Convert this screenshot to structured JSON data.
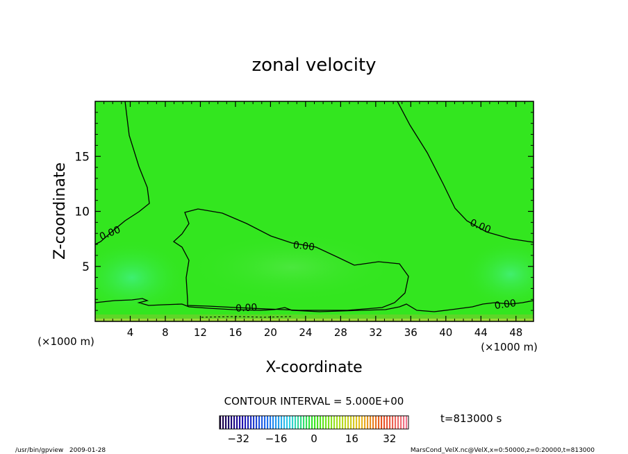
{
  "chart_data": {
    "type": "heatmap",
    "title": "zonal velocity",
    "xlabel": "X-coordinate",
    "ylabel": "Z-coordinate",
    "x_unit_left": "(×1000 m)",
    "x_unit_right": "(×1000 m)",
    "xlim": [
      0,
      50
    ],
    "ylim": [
      0,
      20
    ],
    "x_ticks": [
      "4",
      "8",
      "12",
      "16",
      "20",
      "24",
      "28",
      "32",
      "36",
      "40",
      "44",
      "48"
    ],
    "x_tick_values": [
      4,
      8,
      12,
      16,
      20,
      24,
      28,
      32,
      36,
      40,
      44,
      48
    ],
    "y_ticks": [
      "5",
      "10",
      "15"
    ],
    "y_tick_values": [
      5,
      10,
      15
    ],
    "contour_interval": "CONTOUR INTERVAL = 5.000E+00",
    "contour_labels": [
      "0.00",
      "0.00",
      "0.00",
      "0.00",
      "0.00"
    ],
    "colorbar": {
      "min": -40,
      "max": 40,
      "ticks": [
        "−32",
        "−16",
        "0",
        "16",
        "32"
      ],
      "tick_values": [
        -32,
        -16,
        0,
        16,
        32
      ]
    },
    "time_label": "t=813000 s",
    "footer_left": "/usr/bin/gpview   2009-01-28",
    "footer_right": "MarsCond_VelX.nc@VelX,x=0:50000,z=0:20000,t=813000",
    "field_color": "#33e61f",
    "grid": false,
    "legend": "colorbar bottom"
  }
}
